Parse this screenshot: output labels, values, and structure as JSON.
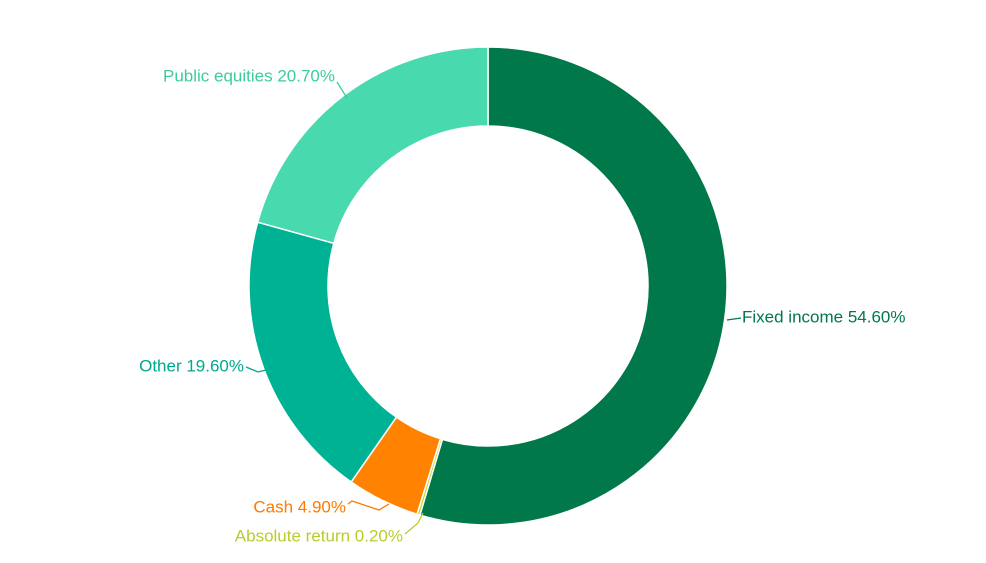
{
  "chart_data": {
    "type": "pie",
    "donut": true,
    "title": "",
    "series": [
      {
        "name": "Fixed income",
        "value": 54.6,
        "label": "Fixed income 54.60%",
        "color": "#00784A",
        "label_color": "#00784A"
      },
      {
        "name": "Absolute return",
        "value": 0.2,
        "label": "Absolute return 0.20%",
        "color": "#C5D92D",
        "label_color": "#BCCB2A"
      },
      {
        "name": "Cash",
        "value": 4.9,
        "label": "Cash 4.90%",
        "color": "#FF8200",
        "label_color": "#FF7A00"
      },
      {
        "name": "Other",
        "value": 19.6,
        "label": "Other 19.60%",
        "color": "#00B294",
        "label_color": "#00A88C"
      },
      {
        "name": "Public equities",
        "value": 20.7,
        "label": "Public equities 20.70%",
        "color": "#48D9AE",
        "label_color": "#3CCB9F"
      }
    ],
    "legend": "none"
  }
}
